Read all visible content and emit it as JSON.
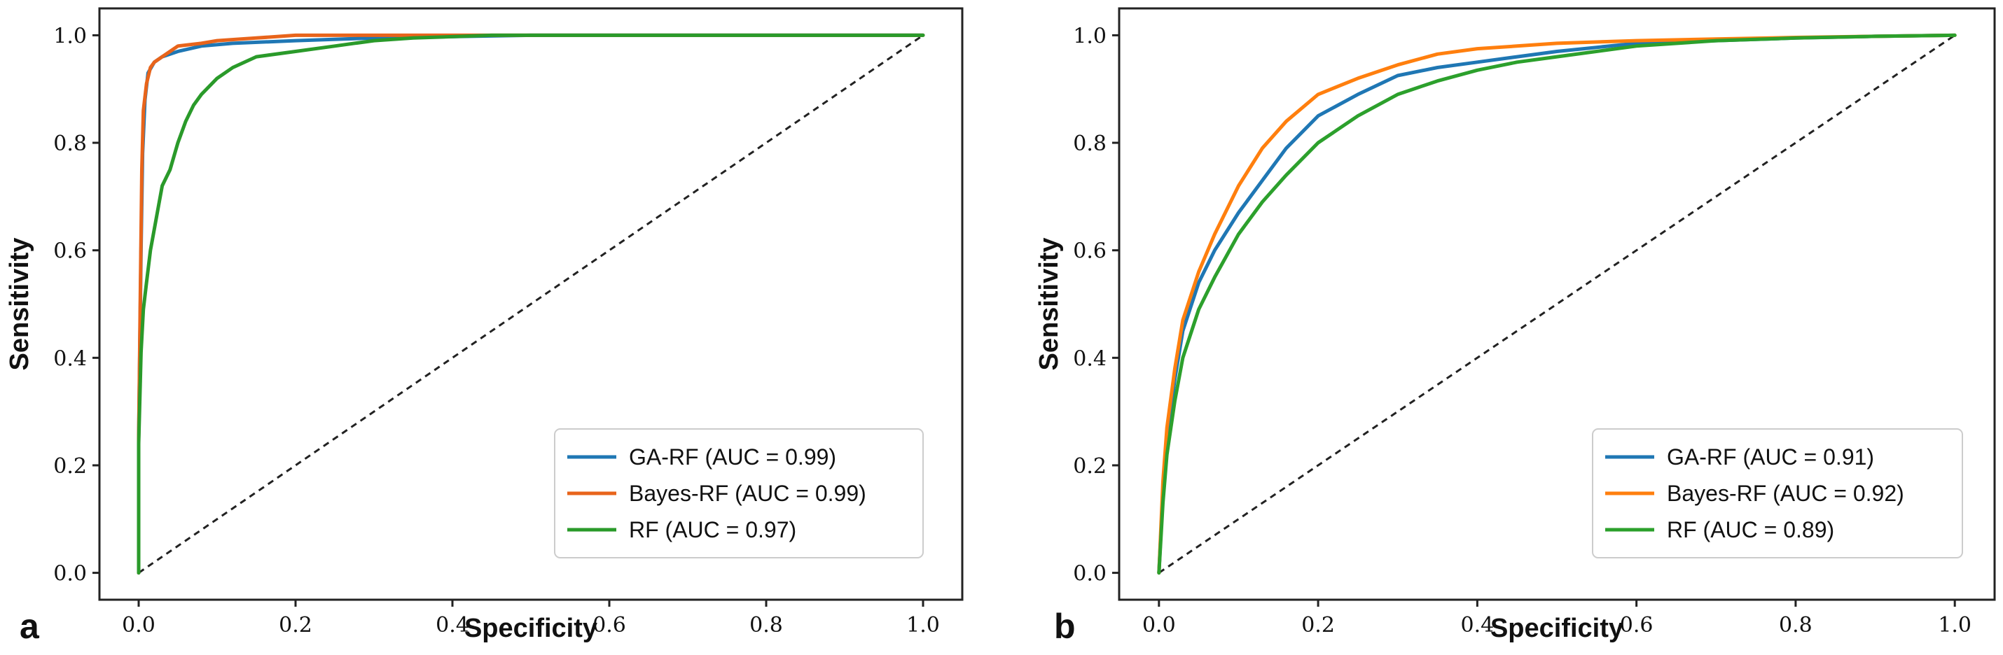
{
  "colors": {
    "blue": "#1f77b4",
    "orange": "#ff7f0e",
    "orange_dark": "#e8641b",
    "green": "#2ca02c",
    "green_dark": "#2a9a2a",
    "diagonal": "#222222",
    "axis": "#222222"
  },
  "chart_data": [
    {
      "type": "line",
      "panel_label": "a",
      "xlabel": "Specificity",
      "ylabel": "Sensitivity",
      "xlim": [
        -0.05,
        1.05
      ],
      "ylim": [
        -0.05,
        1.05
      ],
      "xticks": [
        "0.0",
        "0.2",
        "0.4",
        "0.6",
        "0.8",
        "1.0"
      ],
      "yticks": [
        "0.0",
        "0.2",
        "0.4",
        "0.6",
        "0.8",
        "1.0"
      ],
      "legend_position": "bottom-right",
      "diagonal": {
        "x": [
          0,
          1
        ],
        "y": [
          0,
          1
        ],
        "style": "dashed"
      },
      "series": [
        {
          "name": "GA-RF (AUC = 0.99)",
          "color_key": "blue",
          "x": [
            0,
            0.0,
            0.003,
            0.005,
            0.008,
            0.012,
            0.02,
            0.03,
            0.05,
            0.08,
            0.12,
            0.2,
            0.3,
            0.5,
            0.7,
            1.0
          ],
          "y": [
            0,
            0.25,
            0.6,
            0.78,
            0.88,
            0.93,
            0.95,
            0.96,
            0.97,
            0.98,
            0.985,
            0.99,
            0.995,
            1.0,
            1.0,
            1.0
          ]
        },
        {
          "name": "Bayes-RF (AUC = 0.99)",
          "color_key": "orange_dark",
          "x": [
            0,
            0.0,
            0.002,
            0.004,
            0.006,
            0.01,
            0.015,
            0.02,
            0.03,
            0.04,
            0.05,
            0.08,
            0.1,
            0.15,
            0.2,
            0.3,
            0.5,
            1.0
          ],
          "y": [
            0,
            0.25,
            0.5,
            0.75,
            0.86,
            0.91,
            0.94,
            0.95,
            0.96,
            0.97,
            0.98,
            0.985,
            0.99,
            0.995,
            1.0,
            1.0,
            1.0,
            1.0
          ]
        },
        {
          "name": "RF (AUC = 0.97)",
          "color_key": "green_dark",
          "x": [
            0,
            0.0,
            0.003,
            0.006,
            0.01,
            0.015,
            0.02,
            0.025,
            0.03,
            0.04,
            0.05,
            0.06,
            0.07,
            0.08,
            0.1,
            0.12,
            0.15,
            0.2,
            0.25,
            0.3,
            0.35,
            0.45,
            0.6,
            0.8,
            1.0
          ],
          "y": [
            0,
            0.24,
            0.41,
            0.49,
            0.54,
            0.6,
            0.64,
            0.68,
            0.72,
            0.75,
            0.8,
            0.84,
            0.87,
            0.89,
            0.92,
            0.94,
            0.96,
            0.97,
            0.98,
            0.99,
            0.995,
            1.0,
            1.0,
            1.0,
            1.0
          ]
        }
      ]
    },
    {
      "type": "line",
      "panel_label": "b",
      "xlabel": "Specificity",
      "ylabel": "Sensitivity",
      "xlim": [
        -0.05,
        1.05
      ],
      "ylim": [
        -0.05,
        1.05
      ],
      "xticks": [
        "0.0",
        "0.2",
        "0.4",
        "0.6",
        "0.8",
        "1.0"
      ],
      "yticks": [
        "0.0",
        "0.2",
        "0.4",
        "0.6",
        "0.8",
        "1.0"
      ],
      "legend_position": "bottom-right",
      "diagonal": {
        "x": [
          0,
          1
        ],
        "y": [
          0,
          1
        ],
        "style": "dashed"
      },
      "series": [
        {
          "name": "GA-RF (AUC = 0.91)",
          "color_key": "blue",
          "x": [
            0,
            0.005,
            0.01,
            0.02,
            0.03,
            0.05,
            0.07,
            0.1,
            0.13,
            0.16,
            0.2,
            0.25,
            0.3,
            0.35,
            0.4,
            0.45,
            0.5,
            0.6,
            0.7,
            0.8,
            0.9,
            1.0
          ],
          "y": [
            0,
            0.15,
            0.25,
            0.36,
            0.45,
            0.54,
            0.6,
            0.67,
            0.73,
            0.79,
            0.85,
            0.89,
            0.925,
            0.94,
            0.95,
            0.96,
            0.97,
            0.985,
            0.99,
            0.995,
            0.998,
            1.0
          ]
        },
        {
          "name": "Bayes-RF (AUC = 0.92)",
          "color_key": "orange",
          "x": [
            0,
            0.005,
            0.01,
            0.02,
            0.03,
            0.05,
            0.07,
            0.1,
            0.13,
            0.16,
            0.2,
            0.25,
            0.3,
            0.35,
            0.4,
            0.45,
            0.5,
            0.6,
            0.7,
            0.8,
            0.9,
            1.0
          ],
          "y": [
            0,
            0.17,
            0.27,
            0.38,
            0.47,
            0.56,
            0.63,
            0.72,
            0.79,
            0.84,
            0.89,
            0.92,
            0.945,
            0.965,
            0.975,
            0.98,
            0.985,
            0.99,
            0.993,
            0.996,
            0.998,
            1.0
          ]
        },
        {
          "name": "RF (AUC = 0.89)",
          "color_key": "green",
          "x": [
            0,
            0.005,
            0.01,
            0.02,
            0.03,
            0.05,
            0.07,
            0.1,
            0.13,
            0.16,
            0.2,
            0.25,
            0.3,
            0.35,
            0.4,
            0.45,
            0.5,
            0.6,
            0.7,
            0.8,
            0.9,
            1.0
          ],
          "y": [
            0,
            0.13,
            0.22,
            0.32,
            0.4,
            0.49,
            0.55,
            0.63,
            0.69,
            0.74,
            0.8,
            0.85,
            0.89,
            0.915,
            0.935,
            0.95,
            0.96,
            0.98,
            0.99,
            0.995,
            0.998,
            1.0
          ]
        }
      ]
    }
  ]
}
